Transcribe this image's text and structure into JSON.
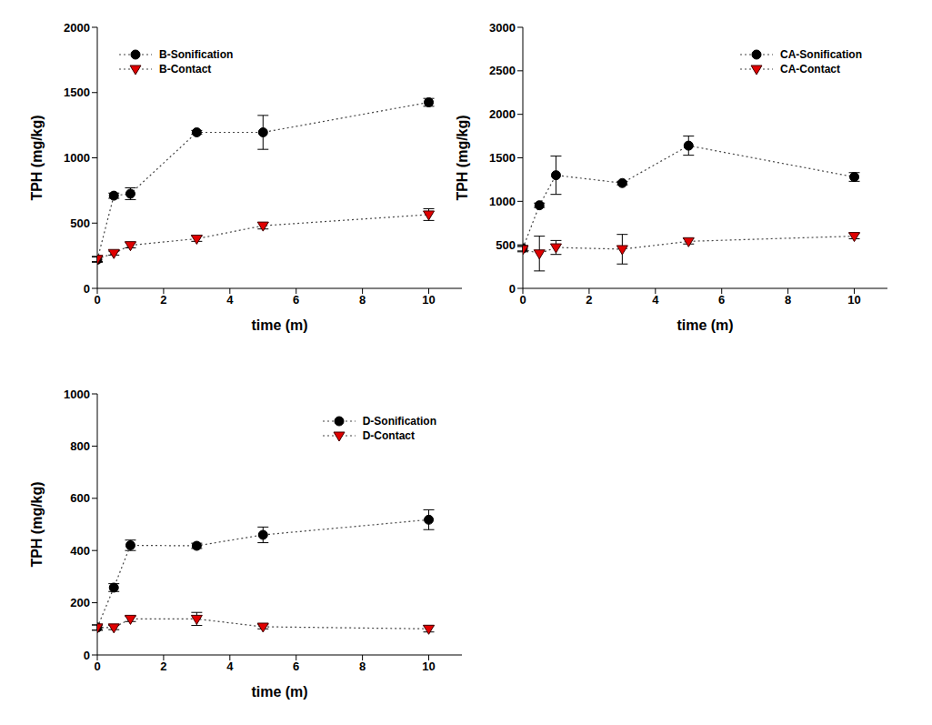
{
  "chart_data": [
    {
      "type": "line",
      "xlabel": "time (m)",
      "ylabel": "TPH (mg/kg)",
      "x": [
        0,
        0.5,
        1,
        3,
        5,
        10
      ],
      "xlim": [
        0,
        11
      ],
      "xticks": [
        0,
        2,
        4,
        6,
        8,
        10
      ],
      "ylim": [
        0,
        2000
      ],
      "yticks": [
        0,
        500,
        1000,
        1500,
        2000
      ],
      "legend": "upper left",
      "series": [
        {
          "name": "B-Sonification",
          "color": "#000000",
          "marker": "circle",
          "line_style": "dotted",
          "values": [
            220,
            710,
            725,
            1195,
            1195,
            1425
          ],
          "errors": [
            20,
            20,
            45,
            15,
            130,
            30
          ]
        },
        {
          "name": "B-Contact",
          "color": "#e00000",
          "marker": "triangle-down",
          "line_style": "dotted",
          "values": [
            225,
            270,
            330,
            380,
            480,
            565
          ],
          "errors": [
            20,
            15,
            20,
            20,
            25,
            45
          ]
        }
      ]
    },
    {
      "type": "line",
      "xlabel": "time (m)",
      "ylabel": "TPH (mg/kg)",
      "x": [
        0,
        0.5,
        1,
        3,
        5,
        10
      ],
      "xlim": [
        0,
        11
      ],
      "xticks": [
        0,
        2,
        4,
        6,
        8,
        10
      ],
      "ylim": [
        0,
        3000
      ],
      "yticks": [
        0,
        500,
        1000,
        1500,
        2000,
        2500,
        3000
      ],
      "legend": "upper right",
      "series": [
        {
          "name": "CA-Sonification",
          "color": "#000000",
          "marker": "circle",
          "line_style": "dotted",
          "values": [
            460,
            955,
            1300,
            1210,
            1640,
            1280
          ],
          "errors": [
            30,
            25,
            220,
            20,
            110,
            50
          ]
        },
        {
          "name": "CA-Contact",
          "color": "#e00000",
          "marker": "triangle-down",
          "line_style": "dotted",
          "values": [
            450,
            400,
            470,
            450,
            540,
            600
          ],
          "errors": [
            30,
            200,
            80,
            170,
            30,
            30
          ]
        }
      ]
    },
    {
      "type": "line",
      "xlabel": "time (m)",
      "ylabel": "TPH (mg/kg)",
      "x": [
        0,
        0.5,
        1,
        3,
        5,
        10
      ],
      "xlim": [
        0,
        11
      ],
      "xticks": [
        0,
        2,
        4,
        6,
        8,
        10
      ],
      "ylim": [
        0,
        1000
      ],
      "yticks": [
        0,
        200,
        400,
        600,
        800,
        1000
      ],
      "legend": "upper right",
      "series": [
        {
          "name": "D-Sonification",
          "color": "#000000",
          "marker": "circle",
          "line_style": "dotted",
          "values": [
            105,
            258,
            420,
            418,
            460,
            518
          ],
          "errors": [
            10,
            15,
            20,
            10,
            30,
            38
          ]
        },
        {
          "name": "D-Contact",
          "color": "#e00000",
          "marker": "triangle-down",
          "line_style": "dotted",
          "values": [
            105,
            105,
            138,
            138,
            108,
            100
          ],
          "errors": [
            10,
            8,
            10,
            25,
            8,
            12
          ]
        }
      ]
    }
  ]
}
